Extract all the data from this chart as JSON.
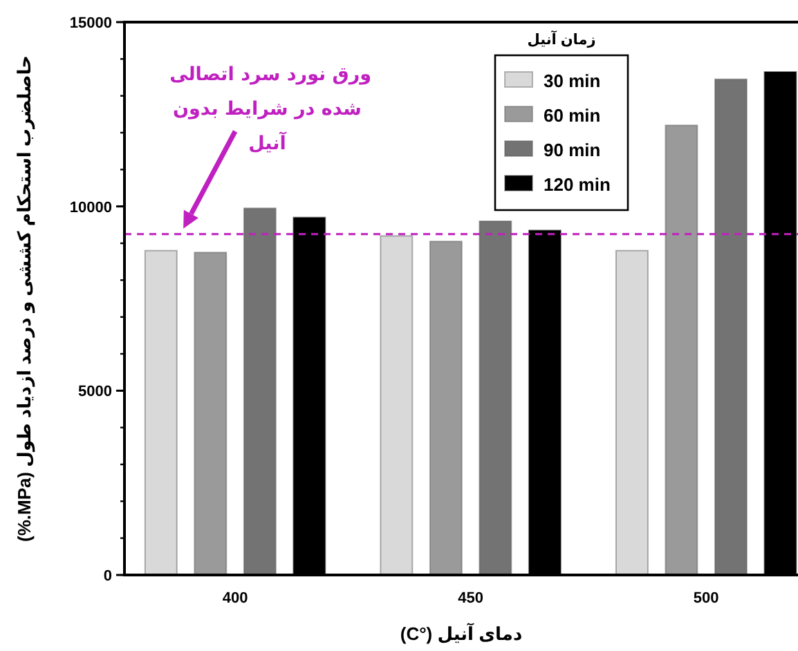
{
  "chart_data": {
    "type": "bar",
    "xlabel": "دمای آنیل (°C)",
    "ylabel": "حاصلضرب استحکام کششی و درصد ازدیاد طول (MPa.%)",
    "legend_title": "زمان آنیل",
    "categories": [
      "400",
      "450",
      "500"
    ],
    "series": [
      {
        "name": "30 min",
        "color": "#d9d9d9",
        "values": [
          8800,
          9200,
          8800
        ]
      },
      {
        "name": "60 min",
        "color": "#9a9a9a",
        "values": [
          8750,
          9050,
          12200
        ]
      },
      {
        "name": "90 min",
        "color": "#737373",
        "values": [
          9950,
          9600,
          13450
        ]
      },
      {
        "name": "120 min",
        "color": "#000000",
        "values": [
          9700,
          9350,
          13650
        ]
      }
    ],
    "ylim": [
      0,
      15000
    ],
    "yticks": [
      0,
      5000,
      10000,
      15000
    ],
    "ref_lines": [
      {
        "axis": "y",
        "value": 9250,
        "label": "ورق نورد سرد اتصالی شده در شرایط بدون آنیل",
        "color": "#c020c0",
        "line_style": "dashed"
      }
    ],
    "legend": "top right"
  }
}
